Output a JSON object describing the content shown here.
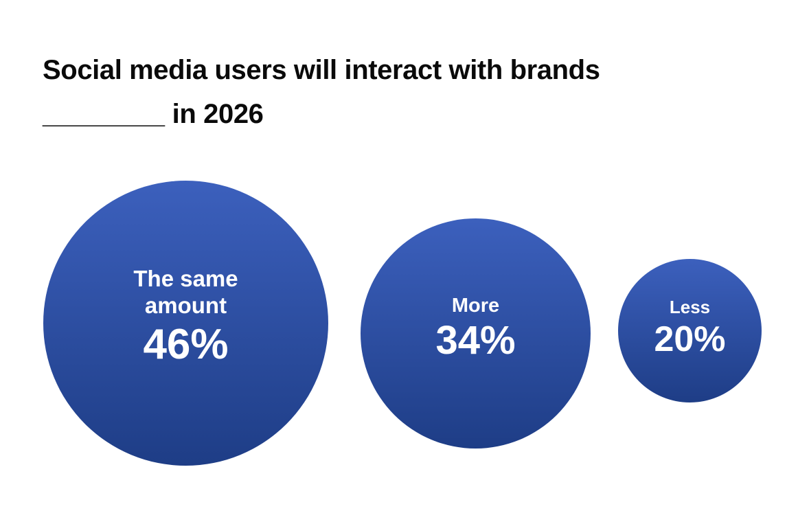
{
  "title": {
    "line1": "Social media users will interact with brands",
    "blank": "________",
    "line2_text": " in 2026"
  },
  "colors": {
    "bubble_gradient_top": "#3c60bd",
    "bubble_gradient_bottom": "#1e3d86",
    "bubble_text": "#ffffff",
    "title_text": "#0a0a0a",
    "background": "#ffffff"
  },
  "chart_data": {
    "type": "bubble",
    "title": "Social media users will interact with brands ________ in 2026",
    "categories": [
      "The same amount",
      "More",
      "Less"
    ],
    "values": [
      46,
      34,
      20
    ],
    "unit": "%",
    "value_labels": [
      "46%",
      "34%",
      "20%"
    ],
    "legend": "none",
    "layout": "three gradient-blue circles in a row, area sized by value, centers roughly vertically aligned, labels and percentages in white inside each circle"
  },
  "bubbles": [
    {
      "label_lines": [
        "The same",
        "amount"
      ],
      "value": "46%"
    },
    {
      "label_lines": [
        "More"
      ],
      "value": "34%"
    },
    {
      "label_lines": [
        "Less"
      ],
      "value": "20%"
    }
  ]
}
